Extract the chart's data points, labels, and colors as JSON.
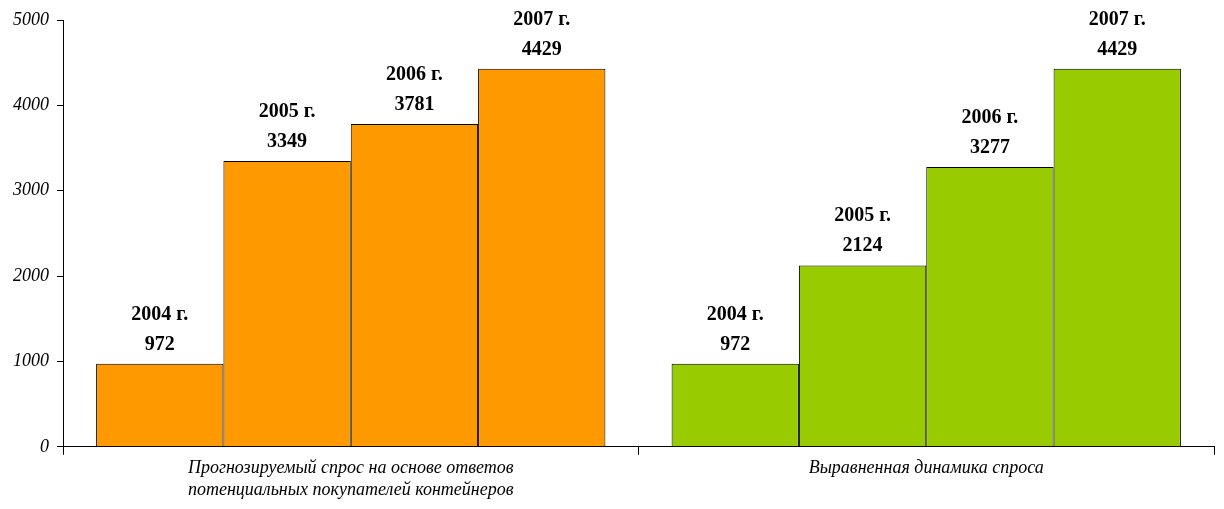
{
  "chart_data": {
    "type": "bar",
    "categories": [
      "Прогнозируемый спрос на основе ответов потенциальных покупателей контейнеров",
      "Выравненная динамика спроса"
    ],
    "series": [
      {
        "name": "2004 г.",
        "colors": [
          "#ff9900",
          "#99cc00"
        ],
        "values": [
          972,
          972
        ]
      },
      {
        "name": "2005 г.",
        "colors": [
          "#ff9900",
          "#99cc00"
        ],
        "values": [
          3349,
          2124
        ]
      },
      {
        "name": "2006 г.",
        "colors": [
          "#ff9900",
          "#99cc00"
        ],
        "values": [
          3781,
          3277
        ]
      },
      {
        "name": "2007 г.",
        "colors": [
          "#ff9900",
          "#99cc00"
        ],
        "values": [
          4429,
          4429
        ]
      }
    ],
    "ylim": [
      0,
      5000
    ],
    "yticks": [
      0,
      1000,
      2000,
      3000,
      4000,
      5000
    ],
    "grid": false,
    "legend": false,
    "data_labels": true
  }
}
